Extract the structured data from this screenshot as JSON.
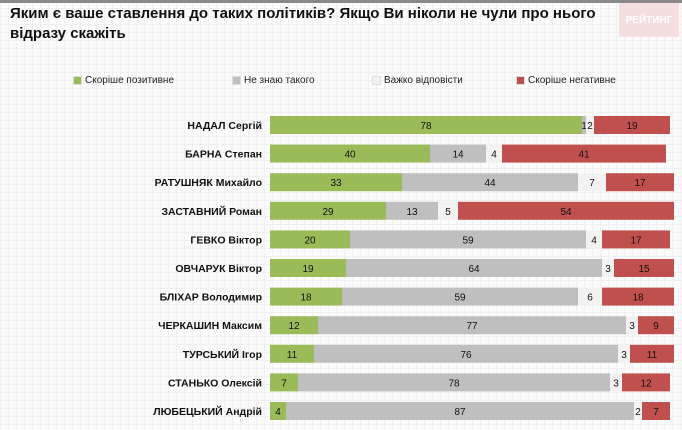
{
  "title": "Яким є ваше ставлення до таких політиків? Якщо Ви ніколи не чули про нього відразу скажіть",
  "logo": "РЕЙТИНГ",
  "colors": {
    "positive": "#9bbb59",
    "unknown": "#bfbfbf",
    "hard": "#f2f2f2",
    "negative": "#c0504d"
  },
  "chart_data": {
    "type": "bar",
    "orientation": "horizontal-stacked",
    "title": "Яким є ваше ставлення до таких політиків? Якщо Ви ніколи не чули про нього відразу скажіть",
    "legend_position": "top",
    "categories": [
      "НАДАЛ Сергій",
      "БАРНА Степан",
      "РАТУШНЯК Михайло",
      "ЗАСТАВНИЙ Роман",
      "ГЕВКО Віктор",
      "ОВЧАРУК Віктор",
      "БЛІХАР Володимир",
      "ЧЕРКАШИН Максим",
      "ТУРСЬКИЙ Ігор",
      "СТАНЬКО Олексій",
      "ЛЮБЕЦЬКИЙ Андрій"
    ],
    "series": [
      {
        "name": "Скоріше позитивне",
        "values": [
          78,
          40,
          33,
          29,
          20,
          19,
          18,
          12,
          11,
          7,
          4
        ]
      },
      {
        "name": "Не знаю такого",
        "values": [
          1,
          14,
          44,
          13,
          59,
          64,
          59,
          77,
          76,
          78,
          87
        ]
      },
      {
        "name": "Важко відповісти",
        "values": [
          2,
          4,
          7,
          5,
          4,
          3,
          6,
          3,
          3,
          3,
          2
        ]
      },
      {
        "name": "Скоріше негативне",
        "values": [
          19,
          41,
          17,
          54,
          17,
          15,
          18,
          9,
          11,
          12,
          7
        ]
      }
    ],
    "xlim": [
      0,
      100
    ]
  }
}
